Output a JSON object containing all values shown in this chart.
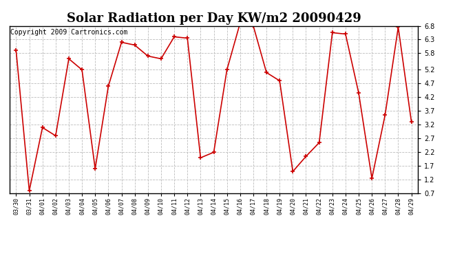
{
  "title": "Solar Radiation per Day KW/m2 20090429",
  "copyright": "Copyright 2009 Cartronics.com",
  "dates": [
    "03/30",
    "03/31",
    "04/01",
    "04/02",
    "04/03",
    "04/04",
    "04/05",
    "04/06",
    "04/07",
    "04/08",
    "04/09",
    "04/10",
    "04/11",
    "04/12",
    "04/13",
    "04/14",
    "04/15",
    "04/16",
    "04/17",
    "04/18",
    "04/19",
    "04/20",
    "04/21",
    "04/22",
    "04/23",
    "04/24",
    "04/25",
    "04/26",
    "04/27",
    "04/28",
    "04/29"
  ],
  "values": [
    5.9,
    0.8,
    3.1,
    2.8,
    5.6,
    5.2,
    1.6,
    4.6,
    6.2,
    6.1,
    5.7,
    5.6,
    6.4,
    6.35,
    2.0,
    2.2,
    5.2,
    6.9,
    6.8,
    5.1,
    4.8,
    1.5,
    2.05,
    2.55,
    6.55,
    6.5,
    4.35,
    1.25,
    3.55,
    6.75,
    3.3
  ],
  "line_color": "#cc0000",
  "marker": "+",
  "marker_size": 5,
  "marker_linewidth": 1.2,
  "line_width": 1.2,
  "bg_color": "#ffffff",
  "grid_color": "#bbbbbb",
  "grid_linestyle": "--",
  "ylim": [
    0.7,
    6.8
  ],
  "yticks": [
    0.7,
    1.2,
    1.7,
    2.2,
    2.7,
    3.2,
    3.7,
    4.2,
    4.7,
    5.2,
    5.8,
    6.3,
    6.8
  ],
  "title_fontsize": 13,
  "title_fontweight": "bold",
  "copyright_fontsize": 7,
  "tick_fontsize": 7,
  "xtick_fontsize": 6
}
